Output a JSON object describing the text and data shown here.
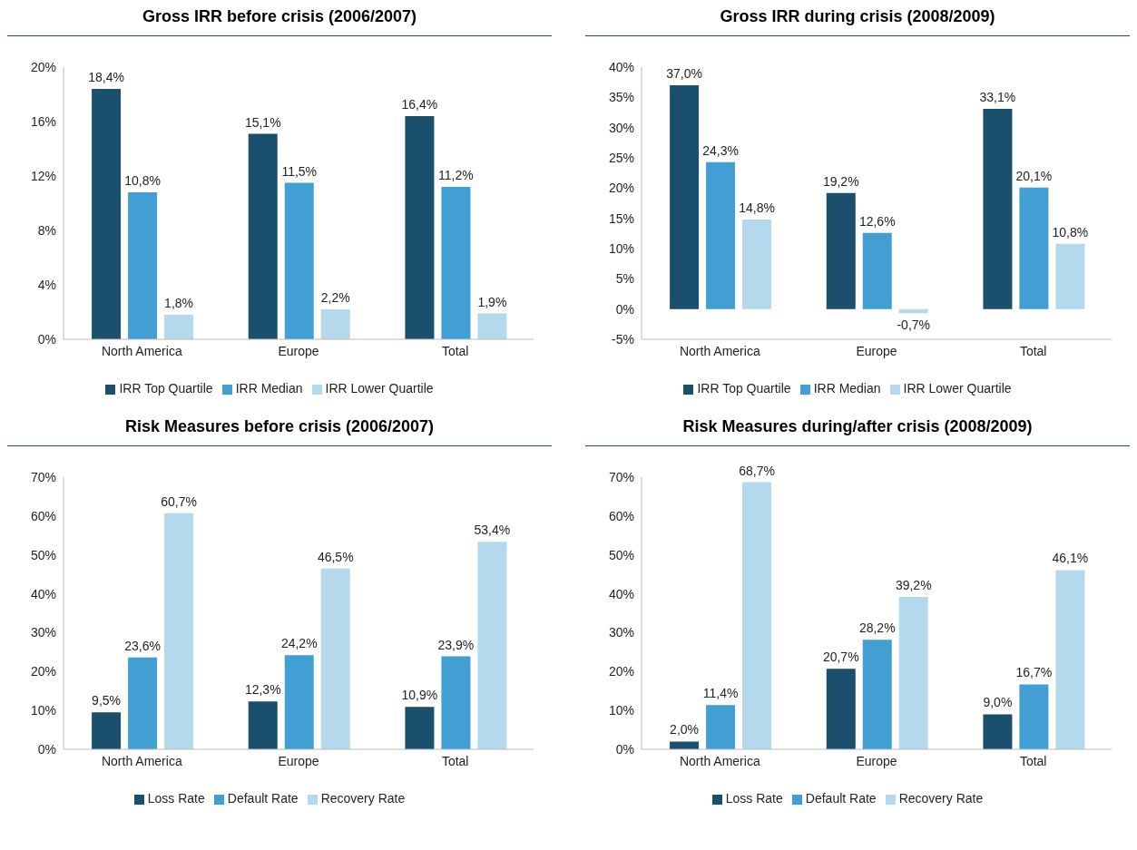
{
  "chart_data": [
    {
      "type": "bar",
      "title": "Gross IRR before crisis (2006/2007)",
      "categories": [
        "North America",
        "Europe",
        "Total"
      ],
      "ylim": [
        0,
        20
      ],
      "yticks": [
        {
          "value": 0,
          "label": "0%"
        },
        {
          "value": 4,
          "label": "4%"
        },
        {
          "value": 8,
          "label": "8%"
        },
        {
          "value": 12,
          "label": "12%"
        },
        {
          "value": 16,
          "label": "16%"
        },
        {
          "value": 20,
          "label": "20%"
        }
      ],
      "legend": "bottom",
      "series": [
        {
          "name": "IRR Top Quartile",
          "color": "#1b4f6e",
          "values": [
            18.4,
            15.1,
            16.4
          ],
          "value_labels": [
            "18,4%",
            "15,1%",
            "16,4%"
          ]
        },
        {
          "name": "IRR Median",
          "color": "#429fd4",
          "values": [
            10.8,
            11.5,
            11.2
          ],
          "value_labels": [
            "10,8%",
            "11,5%",
            "11,2%"
          ]
        },
        {
          "name": "IRR Lower Quartile",
          "color": "#b4d8ec",
          "values": [
            1.8,
            2.2,
            1.9
          ],
          "value_labels": [
            "1,8%",
            "2,2%",
            "1,9%"
          ]
        }
      ]
    },
    {
      "type": "bar",
      "title": "Gross IRR during crisis (2008/2009)",
      "categories": [
        "North America",
        "Europe",
        "Total"
      ],
      "ylim": [
        -5,
        40
      ],
      "yticks": [
        {
          "value": -5,
          "label": "-5%"
        },
        {
          "value": 0,
          "label": "0%"
        },
        {
          "value": 5,
          "label": "5%"
        },
        {
          "value": 10,
          "label": "10%"
        },
        {
          "value": 15,
          "label": "15%"
        },
        {
          "value": 20,
          "label": "20%"
        },
        {
          "value": 25,
          "label": "25%"
        },
        {
          "value": 30,
          "label": "30%"
        },
        {
          "value": 35,
          "label": "35%"
        },
        {
          "value": 40,
          "label": "40%"
        }
      ],
      "legend": "bottom",
      "series": [
        {
          "name": "IRR Top Quartile",
          "color": "#1b4f6e",
          "values": [
            37.0,
            19.2,
            33.1
          ],
          "value_labels": [
            "37,0%",
            "19,2%",
            "33,1%"
          ]
        },
        {
          "name": "IRR Median",
          "color": "#429fd4",
          "values": [
            24.3,
            12.6,
            20.1
          ],
          "value_labels": [
            "24,3%",
            "12,6%",
            "20,1%"
          ]
        },
        {
          "name": "IRR Lower Quartile",
          "color": "#b4d8ec",
          "values": [
            14.8,
            -0.7,
            10.8
          ],
          "value_labels": [
            "14,8%",
            "-0,7%",
            "10,8%"
          ]
        }
      ]
    },
    {
      "type": "bar",
      "title": "Risk Measures before crisis (2006/2007)",
      "categories": [
        "North America",
        "Europe",
        "Total"
      ],
      "ylim": [
        0,
        70
      ],
      "yticks": [
        {
          "value": 0,
          "label": "0%"
        },
        {
          "value": 10,
          "label": "10%"
        },
        {
          "value": 20,
          "label": "20%"
        },
        {
          "value": 30,
          "label": "30%"
        },
        {
          "value": 40,
          "label": "40%"
        },
        {
          "value": 50,
          "label": "50%"
        },
        {
          "value": 60,
          "label": "60%"
        },
        {
          "value": 70,
          "label": "70%"
        }
      ],
      "legend": "bottom",
      "series": [
        {
          "name": "Loss Rate",
          "color": "#1b4f6e",
          "values": [
            9.5,
            12.3,
            10.9
          ],
          "value_labels": [
            "9,5%",
            "12,3%",
            "10,9%"
          ]
        },
        {
          "name": "Default Rate",
          "color": "#429fd4",
          "values": [
            23.6,
            24.2,
            23.9
          ],
          "value_labels": [
            "23,6%",
            "24,2%",
            "23,9%"
          ]
        },
        {
          "name": "Recovery Rate",
          "color": "#b4d8ec",
          "values": [
            60.7,
            46.5,
            53.4
          ],
          "value_labels": [
            "60,7%",
            "46,5%",
            "53,4%"
          ]
        }
      ]
    },
    {
      "type": "bar",
      "title": "Risk Measures during/after crisis (2008/2009)",
      "categories": [
        "North America",
        "Europe",
        "Total"
      ],
      "ylim": [
        0,
        70
      ],
      "yticks": [
        {
          "value": 0,
          "label": "0%"
        },
        {
          "value": 10,
          "label": "10%"
        },
        {
          "value": 20,
          "label": "20%"
        },
        {
          "value": 30,
          "label": "30%"
        },
        {
          "value": 40,
          "label": "40%"
        },
        {
          "value": 50,
          "label": "50%"
        },
        {
          "value": 60,
          "label": "60%"
        },
        {
          "value": 70,
          "label": "70%"
        }
      ],
      "legend": "bottom",
      "series": [
        {
          "name": "Loss Rate",
          "color": "#1b4f6e",
          "values": [
            2.0,
            20.7,
            9.0
          ],
          "value_labels": [
            "2,0%",
            "20,7%",
            "9,0%"
          ]
        },
        {
          "name": "Default Rate",
          "color": "#429fd4",
          "values": [
            11.4,
            28.2,
            16.7
          ],
          "value_labels": [
            "11,4%",
            "28,2%",
            "16,7%"
          ]
        },
        {
          "name": "Recovery Rate",
          "color": "#b4d8ec",
          "values": [
            68.7,
            39.2,
            46.1
          ],
          "value_labels": [
            "68,7%",
            "39,2%",
            "46,1%"
          ]
        }
      ]
    }
  ]
}
